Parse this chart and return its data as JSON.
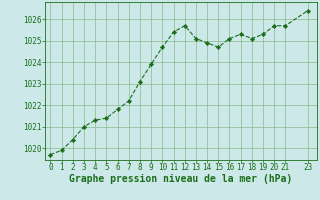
{
  "x": [
    0,
    1,
    2,
    3,
    4,
    5,
    6,
    7,
    8,
    9,
    10,
    11,
    12,
    13,
    14,
    15,
    16,
    17,
    18,
    19,
    20,
    21,
    23
  ],
  "y": [
    1019.7,
    1019.9,
    1020.4,
    1021.0,
    1021.3,
    1021.4,
    1021.8,
    1022.2,
    1023.1,
    1023.9,
    1024.7,
    1025.4,
    1025.7,
    1025.1,
    1024.9,
    1024.7,
    1025.1,
    1025.3,
    1025.1,
    1025.3,
    1025.7,
    1025.7,
    1026.4
  ],
  "line_color": "#1a6e1a",
  "marker_color": "#1a6e1a",
  "bg_color": "#cce8e8",
  "grid_color": "#88bb88",
  "xlabel": "Graphe pression niveau de la mer (hPa)",
  "xlabel_color": "#1a6e1a",
  "ylabel_ticks": [
    1020,
    1021,
    1022,
    1023,
    1024,
    1025,
    1026
  ],
  "xtick_labels": [
    "0",
    "1",
    "2",
    "3",
    "4",
    "5",
    "6",
    "7",
    "8",
    "9",
    "10",
    "11",
    "12",
    "13",
    "14",
    "15",
    "16",
    "17",
    "18",
    "19",
    "20",
    "21",
    "23"
  ],
  "xtick_positions": [
    0,
    1,
    2,
    3,
    4,
    5,
    6,
    7,
    8,
    9,
    10,
    11,
    12,
    13,
    14,
    15,
    16,
    17,
    18,
    19,
    20,
    21,
    23
  ],
  "ylim": [
    1019.45,
    1026.8
  ],
  "xlim": [
    -0.5,
    23.8
  ],
  "tick_fontsize": 5.5,
  "xlabel_fontsize": 7.0,
  "marker_size": 2.2,
  "linewidth": 0.8
}
